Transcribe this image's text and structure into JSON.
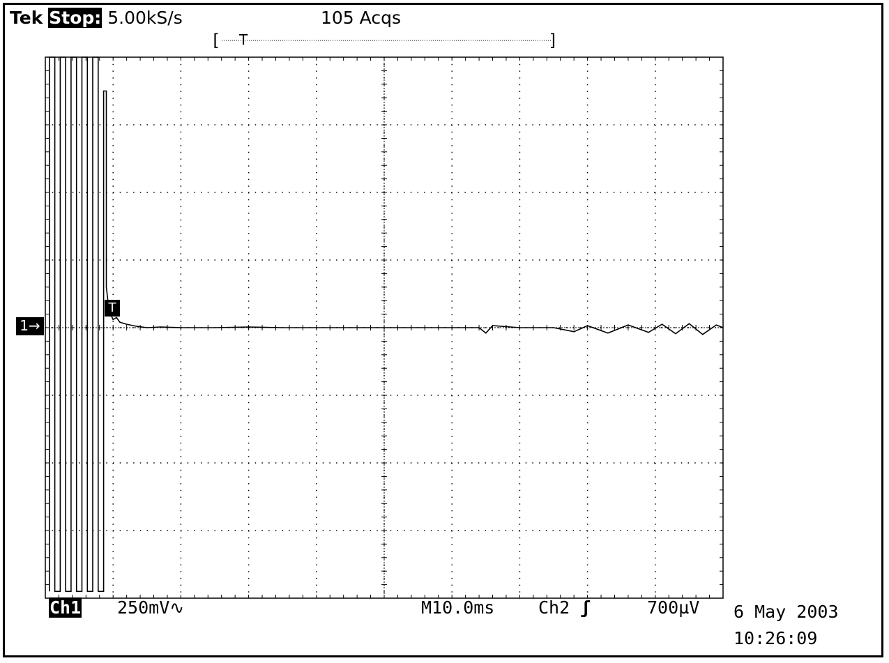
{
  "header": {
    "brand": "Tek",
    "run_state": "Stop:",
    "sample_rate": "5.00kS/s",
    "acquisitions": "105 Acqs",
    "record_window_label": "T"
  },
  "channel_marker": {
    "label": "1→"
  },
  "trigger_marker": {
    "label": "T"
  },
  "footer": {
    "channel": "Ch1",
    "volts_per_div": "250mV",
    "coupling_symbol": "∿",
    "timebase": "M10.0ms",
    "trigger_source": "Ch2",
    "trigger_slope_symbol": "ʃ",
    "trigger_level": "700µV",
    "date": "6 May 2003",
    "time": "10:26:09"
  },
  "chart_data": {
    "type": "line",
    "grid": true,
    "divisions": {
      "x": 10,
      "y": 8
    },
    "xlim_div": [
      0,
      10
    ],
    "ylim_div": [
      -4,
      4
    ],
    "series": [
      {
        "x_div": [
          0.06,
          0.06,
          0.14,
          0.14,
          0.22,
          0.22,
          0.3,
          0.3,
          0.38,
          0.38,
          0.46,
          0.46,
          0.54,
          0.54,
          0.62,
          0.62,
          0.7,
          0.7,
          0.78,
          0.78,
          0.86,
          0.86,
          0.9,
          0.9,
          0.94,
          1.0,
          1.05,
          1.1,
          1.2,
          1.35,
          1.5,
          1.7,
          2.0,
          2.5,
          3.0,
          3.5,
          4.0,
          4.5,
          5.0,
          5.5,
          6.0,
          6.4,
          6.5,
          6.6,
          7.0,
          7.5,
          7.8,
          8.0,
          8.3,
          8.6,
          8.9,
          9.1,
          9.3,
          9.5,
          9.7,
          9.9,
          10.0
        ],
        "y_div": [
          -3.9,
          4.0,
          4.0,
          -3.9,
          -3.9,
          4.0,
          4.0,
          -3.9,
          -3.9,
          4.0,
          4.0,
          -3.9,
          -3.9,
          4.0,
          4.0,
          -3.9,
          -3.9,
          4.0,
          4.0,
          -3.9,
          -3.9,
          3.5,
          3.5,
          0.6,
          0.25,
          0.12,
          0.15,
          0.08,
          0.05,
          0.02,
          0.0,
          0.01,
          0.0,
          0.0,
          0.01,
          0.0,
          0.0,
          0.0,
          0.0,
          0.0,
          0.0,
          0.0,
          -0.08,
          0.03,
          0.0,
          0.0,
          -0.06,
          0.03,
          -0.08,
          0.04,
          -0.07,
          0.05,
          -0.09,
          0.06,
          -0.1,
          0.04,
          0.0
        ]
      }
    ]
  }
}
